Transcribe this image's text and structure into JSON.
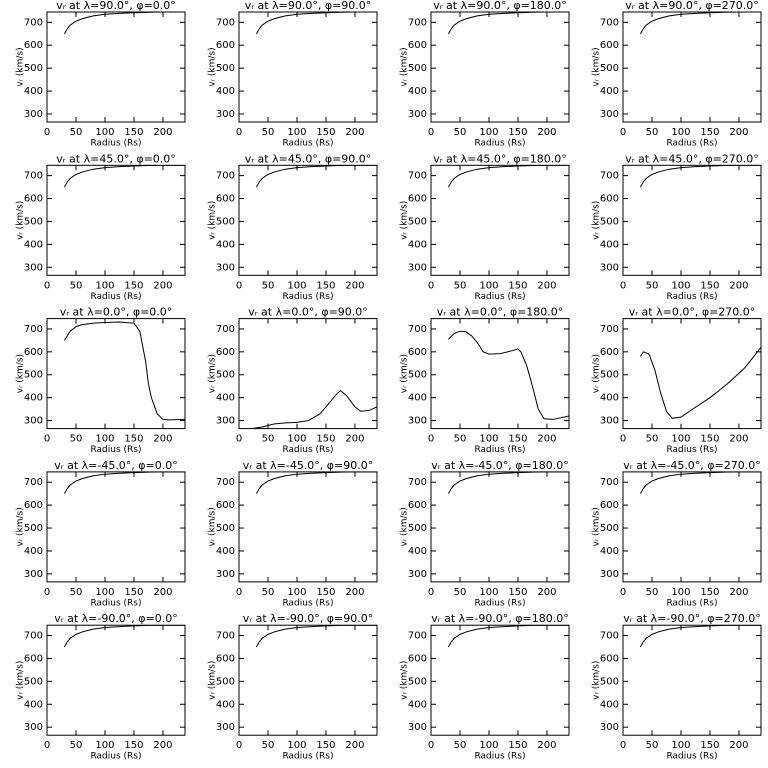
{
  "chart_data": [
    {
      "type": "line",
      "title": "vᵣ at λ=90.0°, φ=0.0°",
      "x_label": "Radius (Rs)",
      "y_label": "vᵣ (km/s)",
      "xlim": [
        0,
        238
      ],
      "ylim": [
        265,
        745
      ],
      "xticks": [
        0,
        50,
        100,
        150,
        200
      ],
      "yticks": [
        300,
        400,
        500,
        600,
        700
      ],
      "color": "#000000",
      "x": [
        30,
        35,
        40,
        50,
        60,
        70,
        80,
        100,
        125,
        150,
        175,
        200,
        238
      ],
      "values": [
        650,
        672,
        688,
        705,
        715,
        722,
        728,
        735,
        739,
        742,
        744,
        745,
        745
      ]
    },
    {
      "type": "line",
      "title": "vᵣ at λ=90.0°, φ=90.0°",
      "x_label": "Radius (Rs)",
      "y_label": "vᵣ (km/s)",
      "xlim": [
        0,
        238
      ],
      "ylim": [
        265,
        745
      ],
      "xticks": [
        0,
        50,
        100,
        150,
        200
      ],
      "yticks": [
        300,
        400,
        500,
        600,
        700
      ],
      "color": "#000000",
      "x": [
        30,
        35,
        40,
        50,
        60,
        70,
        80,
        100,
        125,
        150,
        175,
        200,
        238
      ],
      "values": [
        650,
        672,
        688,
        705,
        715,
        722,
        728,
        735,
        739,
        742,
        744,
        745,
        745
      ]
    },
    {
      "type": "line",
      "title": "vᵣ at λ=90.0°, φ=180.0°",
      "x_label": "Radius (Rs)",
      "y_label": "vᵣ (km/s)",
      "xlim": [
        0,
        238
      ],
      "ylim": [
        265,
        745
      ],
      "xticks": [
        0,
        50,
        100,
        150,
        200
      ],
      "yticks": [
        300,
        400,
        500,
        600,
        700
      ],
      "color": "#000000",
      "x": [
        30,
        35,
        40,
        50,
        60,
        70,
        80,
        100,
        125,
        150,
        175,
        200,
        238
      ],
      "values": [
        650,
        672,
        688,
        705,
        715,
        722,
        728,
        735,
        739,
        742,
        744,
        745,
        745
      ]
    },
    {
      "type": "line",
      "title": "vᵣ at λ=90.0°, φ=270.0°",
      "x_label": "Radius (Rs)",
      "y_label": "vᵣ (km/s)",
      "xlim": [
        0,
        238
      ],
      "ylim": [
        265,
        745
      ],
      "xticks": [
        0,
        50,
        100,
        150,
        200
      ],
      "yticks": [
        300,
        400,
        500,
        600,
        700
      ],
      "color": "#000000",
      "x": [
        30,
        35,
        40,
        50,
        60,
        70,
        80,
        100,
        125,
        150,
        175,
        200,
        238
      ],
      "values": [
        650,
        672,
        688,
        705,
        715,
        722,
        728,
        735,
        739,
        742,
        744,
        745,
        745
      ]
    },
    {
      "type": "line",
      "title": "vᵣ at λ=45.0°, φ=0.0°",
      "x_label": "Radius (Rs)",
      "y_label": "vᵣ (km/s)",
      "xlim": [
        0,
        238
      ],
      "ylim": [
        265,
        745
      ],
      "xticks": [
        0,
        50,
        100,
        150,
        200
      ],
      "yticks": [
        300,
        400,
        500,
        600,
        700
      ],
      "color": "#000000",
      "x": [
        30,
        35,
        40,
        50,
        60,
        70,
        80,
        100,
        125,
        150,
        175,
        200,
        238
      ],
      "values": [
        650,
        672,
        688,
        705,
        715,
        722,
        728,
        735,
        739,
        742,
        744,
        745,
        745
      ]
    },
    {
      "type": "line",
      "title": "vᵣ at λ=45.0°, φ=90.0°",
      "x_label": "Radius (Rs)",
      "y_label": "vᵣ (km/s)",
      "xlim": [
        0,
        238
      ],
      "ylim": [
        265,
        745
      ],
      "xticks": [
        0,
        50,
        100,
        150,
        200
      ],
      "yticks": [
        300,
        400,
        500,
        600,
        700
      ],
      "color": "#000000",
      "x": [
        30,
        35,
        40,
        50,
        60,
        70,
        80,
        100,
        125,
        150,
        175,
        200,
        238
      ],
      "values": [
        650,
        672,
        688,
        705,
        715,
        722,
        728,
        735,
        739,
        742,
        744,
        745,
        745
      ]
    },
    {
      "type": "line",
      "title": "vᵣ at λ=45.0°, φ=180.0°",
      "x_label": "Radius (Rs)",
      "y_label": "vᵣ (km/s)",
      "xlim": [
        0,
        238
      ],
      "ylim": [
        265,
        745
      ],
      "xticks": [
        0,
        50,
        100,
        150,
        200
      ],
      "yticks": [
        300,
        400,
        500,
        600,
        700
      ],
      "color": "#000000",
      "x": [
        30,
        35,
        40,
        50,
        60,
        70,
        80,
        100,
        125,
        150,
        175,
        200,
        238
      ],
      "values": [
        650,
        672,
        688,
        705,
        715,
        722,
        728,
        735,
        739,
        742,
        744,
        745,
        745
      ]
    },
    {
      "type": "line",
      "title": "vᵣ at λ=45.0°, φ=270.0°",
      "x_label": "Radius (Rs)",
      "y_label": "vᵣ (km/s)",
      "xlim": [
        0,
        238
      ],
      "ylim": [
        265,
        745
      ],
      "xticks": [
        0,
        50,
        100,
        150,
        200
      ],
      "yticks": [
        300,
        400,
        500,
        600,
        700
      ],
      "color": "#000000",
      "x": [
        30,
        35,
        40,
        50,
        60,
        70,
        80,
        100,
        125,
        150,
        175,
        200,
        238
      ],
      "values": [
        650,
        672,
        688,
        705,
        715,
        722,
        728,
        735,
        739,
        742,
        744,
        745,
        745
      ]
    },
    {
      "type": "line",
      "title": "vᵣ at λ=0.0°, φ=0.0°",
      "x_label": "Radius (Rs)",
      "y_label": "vᵣ (km/s)",
      "xlim": [
        0,
        238
      ],
      "ylim": [
        265,
        745
      ],
      "xticks": [
        0,
        50,
        100,
        150,
        200
      ],
      "yticks": [
        300,
        400,
        500,
        600,
        700
      ],
      "color": "#000000",
      "x": [
        30,
        35,
        40,
        50,
        60,
        70,
        80,
        100,
        125,
        150,
        160,
        170,
        175,
        180,
        190,
        200,
        210,
        238
      ],
      "values": [
        650,
        670,
        690,
        710,
        718,
        722,
        725,
        728,
        730,
        725,
        690,
        560,
        460,
        400,
        330,
        305,
        303,
        305
      ]
    },
    {
      "type": "line",
      "title": "vᵣ at λ=0.0°, φ=90.0°",
      "x_label": "Radius (Rs)",
      "y_label": "vᵣ (km/s)",
      "xlim": [
        0,
        238
      ],
      "ylim": [
        265,
        745
      ],
      "xticks": [
        0,
        50,
        100,
        150,
        200
      ],
      "yticks": [
        300,
        400,
        500,
        600,
        700
      ],
      "color": "#000000",
      "x": [
        25,
        40,
        60,
        80,
        100,
        120,
        140,
        160,
        170,
        175,
        185,
        200,
        210,
        225,
        238
      ],
      "values": [
        266,
        272,
        285,
        290,
        292,
        300,
        330,
        390,
        420,
        430,
        410,
        360,
        340,
        345,
        360
      ]
    },
    {
      "type": "line",
      "title": "vᵣ at λ=0.0°, φ=180.0°",
      "x_label": "Radius (Rs)",
      "y_label": "vᵣ (km/s)",
      "xlim": [
        0,
        238
      ],
      "ylim": [
        265,
        745
      ],
      "xticks": [
        0,
        50,
        100,
        150,
        200
      ],
      "yticks": [
        300,
        400,
        500,
        600,
        700
      ],
      "color": "#000000",
      "x": [
        30,
        40,
        50,
        60,
        70,
        80,
        90,
        100,
        120,
        140,
        150,
        155,
        165,
        175,
        185,
        195,
        210,
        238
      ],
      "values": [
        655,
        680,
        690,
        688,
        670,
        640,
        600,
        590,
        592,
        605,
        612,
        600,
        540,
        450,
        350,
        308,
        305,
        320
      ]
    },
    {
      "type": "line",
      "title": "vᵣ at λ=0.0°, φ=270.0°",
      "x_label": "Radius (Rs)",
      "y_label": "vᵣ (km/s)",
      "xlim": [
        0,
        238
      ],
      "ylim": [
        265,
        745
      ],
      "xticks": [
        0,
        50,
        100,
        150,
        200
      ],
      "yticks": [
        300,
        400,
        500,
        600,
        700
      ],
      "color": "#000000",
      "x": [
        30,
        35,
        45,
        55,
        65,
        75,
        85,
        100,
        120,
        150,
        180,
        210,
        238
      ],
      "values": [
        580,
        600,
        590,
        520,
        420,
        340,
        310,
        315,
        350,
        400,
        460,
        530,
        620
      ]
    },
    {
      "type": "line",
      "title": "vᵣ at λ=-45.0°, φ=0.0°",
      "x_label": "Radius (Rs)",
      "y_label": "vᵣ (km/s)",
      "xlim": [
        0,
        238
      ],
      "ylim": [
        265,
        745
      ],
      "xticks": [
        0,
        50,
        100,
        150,
        200
      ],
      "yticks": [
        300,
        400,
        500,
        600,
        700
      ],
      "color": "#000000",
      "x": [
        30,
        35,
        40,
        50,
        60,
        70,
        80,
        100,
        125,
        150,
        175,
        200,
        238
      ],
      "values": [
        650,
        672,
        688,
        705,
        715,
        722,
        728,
        735,
        739,
        742,
        744,
        745,
        745
      ]
    },
    {
      "type": "line",
      "title": "vᵣ at λ=-45.0°, φ=90.0°",
      "x_label": "Radius (Rs)",
      "y_label": "vᵣ (km/s)",
      "xlim": [
        0,
        238
      ],
      "ylim": [
        265,
        745
      ],
      "xticks": [
        0,
        50,
        100,
        150,
        200
      ],
      "yticks": [
        300,
        400,
        500,
        600,
        700
      ],
      "color": "#000000",
      "x": [
        30,
        35,
        40,
        50,
        60,
        70,
        80,
        100,
        125,
        150,
        175,
        200,
        238
      ],
      "values": [
        650,
        672,
        688,
        705,
        715,
        722,
        728,
        735,
        739,
        742,
        744,
        745,
        745
      ]
    },
    {
      "type": "line",
      "title": "vᵣ at λ=-45.0°, φ=180.0°",
      "x_label": "Radius (Rs)",
      "y_label": "vᵣ (km/s)",
      "xlim": [
        0,
        238
      ],
      "ylim": [
        265,
        745
      ],
      "xticks": [
        0,
        50,
        100,
        150,
        200
      ],
      "yticks": [
        300,
        400,
        500,
        600,
        700
      ],
      "color": "#000000",
      "x": [
        30,
        35,
        40,
        50,
        60,
        70,
        80,
        100,
        125,
        150,
        175,
        200,
        238
      ],
      "values": [
        650,
        672,
        688,
        705,
        715,
        722,
        728,
        735,
        739,
        742,
        744,
        745,
        745
      ]
    },
    {
      "type": "line",
      "title": "vᵣ at λ=-45.0°, φ=270.0°",
      "x_label": "Radius (Rs)",
      "y_label": "vᵣ (km/s)",
      "xlim": [
        0,
        238
      ],
      "ylim": [
        265,
        745
      ],
      "xticks": [
        0,
        50,
        100,
        150,
        200
      ],
      "yticks": [
        300,
        400,
        500,
        600,
        700
      ],
      "color": "#000000",
      "x": [
        30,
        35,
        40,
        50,
        60,
        70,
        80,
        100,
        125,
        150,
        175,
        200,
        238
      ],
      "values": [
        650,
        672,
        688,
        705,
        715,
        722,
        728,
        735,
        739,
        742,
        744,
        745,
        745
      ]
    },
    {
      "type": "line",
      "title": "vᵣ at λ=-90.0°, φ=0.0°",
      "x_label": "Radius (Rs)",
      "y_label": "vᵣ (km/s)",
      "xlim": [
        0,
        238
      ],
      "ylim": [
        265,
        745
      ],
      "xticks": [
        0,
        50,
        100,
        150,
        200
      ],
      "yticks": [
        300,
        400,
        500,
        600,
        700
      ],
      "color": "#000000",
      "x": [
        30,
        35,
        40,
        50,
        60,
        70,
        80,
        100,
        125,
        150,
        175,
        200,
        238
      ],
      "values": [
        650,
        672,
        688,
        705,
        715,
        722,
        728,
        735,
        739,
        742,
        744,
        745,
        745
      ]
    },
    {
      "type": "line",
      "title": "vᵣ at λ=-90.0°, φ=90.0°",
      "x_label": "Radius (Rs)",
      "y_label": "vᵣ (km/s)",
      "xlim": [
        0,
        238
      ],
      "ylim": [
        265,
        745
      ],
      "xticks": [
        0,
        50,
        100,
        150,
        200
      ],
      "yticks": [
        300,
        400,
        500,
        600,
        700
      ],
      "color": "#000000",
      "x": [
        30,
        35,
        40,
        50,
        60,
        70,
        80,
        100,
        125,
        150,
        175,
        200,
        238
      ],
      "values": [
        650,
        672,
        688,
        705,
        715,
        722,
        728,
        735,
        739,
        742,
        744,
        745,
        745
      ]
    },
    {
      "type": "line",
      "title": "vᵣ at λ=-90.0°, φ=180.0°",
      "x_label": "Radius (Rs)",
      "y_label": "vᵣ (km/s)",
      "xlim": [
        0,
        238
      ],
      "ylim": [
        265,
        745
      ],
      "xticks": [
        0,
        50,
        100,
        150,
        200
      ],
      "yticks": [
        300,
        400,
        500,
        600,
        700
      ],
      "color": "#000000",
      "x": [
        30,
        35,
        40,
        50,
        60,
        70,
        80,
        100,
        125,
        150,
        175,
        200,
        238
      ],
      "values": [
        650,
        672,
        688,
        705,
        715,
        722,
        728,
        735,
        739,
        742,
        744,
        745,
        745
      ]
    },
    {
      "type": "line",
      "title": "vᵣ at λ=-90.0°, φ=270.0°",
      "x_label": "Radius (Rs)",
      "y_label": "vᵣ (km/s)",
      "xlim": [
        0,
        238
      ],
      "ylim": [
        265,
        745
      ],
      "xticks": [
        0,
        50,
        100,
        150,
        200
      ],
      "yticks": [
        300,
        400,
        500,
        600,
        700
      ],
      "color": "#000000",
      "x": [
        30,
        35,
        40,
        50,
        60,
        70,
        80,
        100,
        125,
        150,
        175,
        200,
        238
      ],
      "values": [
        650,
        672,
        688,
        705,
        715,
        722,
        728,
        735,
        739,
        742,
        744,
        745,
        745
      ]
    }
  ]
}
